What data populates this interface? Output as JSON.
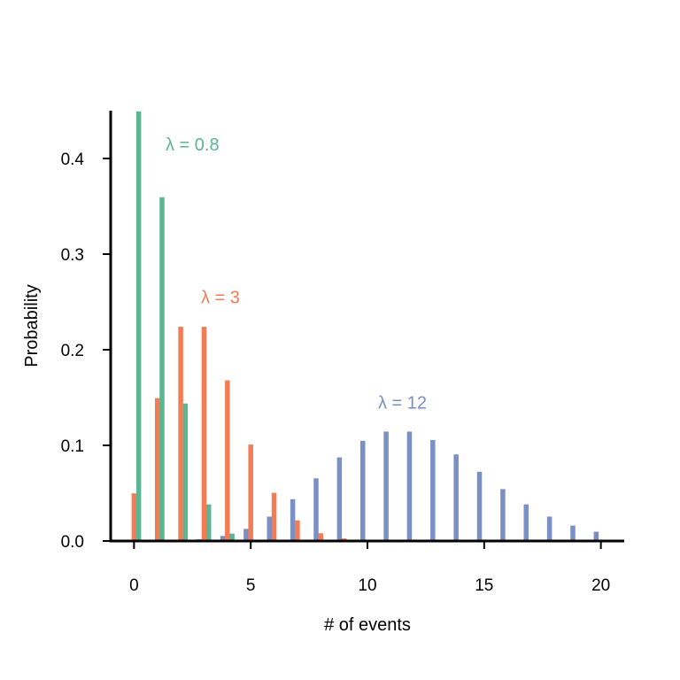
{
  "chart_data": {
    "type": "bar",
    "title": "",
    "xlabel": "# of events",
    "ylabel": "Probability",
    "xlim": [
      -1,
      21
    ],
    "ylim": [
      0,
      0.45
    ],
    "xticks": [
      0,
      5,
      10,
      15,
      20
    ],
    "xtick_labels": [
      "0",
      "5",
      "10",
      "15",
      "20"
    ],
    "yticks": [
      0.0,
      0.1,
      0.2,
      0.3,
      0.4
    ],
    "ytick_labels": [
      "0.0",
      "0.1",
      "0.2",
      "0.3",
      "0.4"
    ],
    "grid": false,
    "x": [
      0,
      1,
      2,
      3,
      4,
      5,
      6,
      7,
      8,
      9,
      10,
      11,
      12,
      13,
      14,
      15,
      16,
      17,
      18,
      19,
      20
    ],
    "series": [
      {
        "name": "λ = 12",
        "label": "λ = 12",
        "color": "#7a8fc4",
        "values": [
          0.0,
          0.0001,
          0.0004,
          0.0018,
          0.0053,
          0.0127,
          0.0255,
          0.0437,
          0.0655,
          0.0874,
          0.1048,
          0.1144,
          0.1144,
          0.1056,
          0.0905,
          0.0724,
          0.0543,
          0.0383,
          0.0255,
          0.0161,
          0.0097
        ]
      },
      {
        "name": "λ = 3",
        "label": "λ = 3",
        "color": "#f47c55",
        "values": [
          0.0498,
          0.1494,
          0.224,
          0.224,
          0.168,
          0.1008,
          0.0504,
          0.0216,
          0.0081,
          0.0027,
          0.0008,
          0.0002,
          0.0001,
          0.0,
          0.0,
          0.0,
          0.0,
          0.0,
          0.0,
          0.0,
          0.0
        ]
      },
      {
        "name": "λ = 0.8",
        "label": "λ = 0.8",
        "color": "#5bb592",
        "values": [
          0.4493,
          0.3595,
          0.1438,
          0.0383,
          0.0077,
          0.0012,
          0.0002,
          0.0,
          0.0,
          0.0,
          0.0,
          0.0,
          0.0,
          0.0,
          0.0,
          0.0,
          0.0,
          0.0,
          0.0,
          0.0,
          0.0
        ]
      }
    ]
  }
}
